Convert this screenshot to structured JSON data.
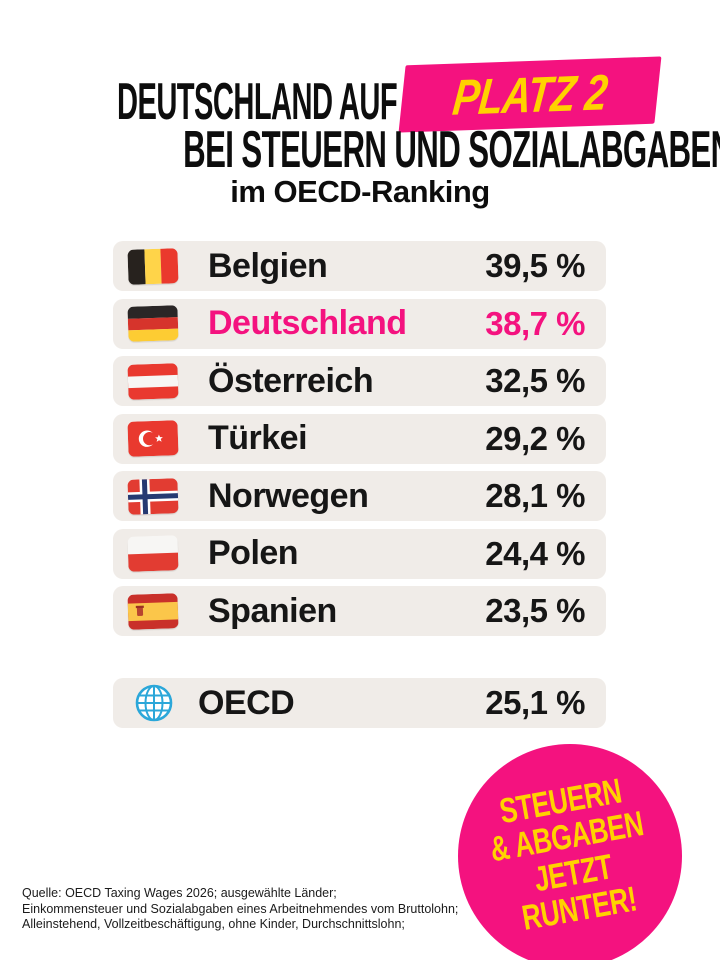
{
  "title": {
    "line1_prefix": "DEUTSCHLAND AUF",
    "badge_label": "PLATZ 2",
    "line2": "BEI STEUERN UND SOZIALABGABEN",
    "subtitle": "im OECD-Ranking"
  },
  "colors": {
    "brand_pink": "#F4127F",
    "brand_yellow": "#FFD200",
    "row_background": "#F0ECE8",
    "text_black": "#0D0D0D",
    "globe_blue": "#2BA7D9"
  },
  "ranking": {
    "rows": [
      {
        "country": "Belgien",
        "flag": "belgium-flag",
        "value": "39,5 %",
        "highlight": false
      },
      {
        "country": "Deutschland",
        "flag": "germany-flag",
        "value": "38,7 %",
        "highlight": true
      },
      {
        "country": "Österreich",
        "flag": "austria-flag",
        "value": "32,5 %",
        "highlight": false
      },
      {
        "country": "Türkei",
        "flag": "turkey-flag",
        "value": "29,2 %",
        "highlight": false
      },
      {
        "country": "Norwegen",
        "flag": "norway-flag",
        "value": "28,1 %",
        "highlight": false
      },
      {
        "country": "Polen",
        "flag": "poland-flag",
        "value": "24,4 %",
        "highlight": false
      },
      {
        "country": "Spanien",
        "flag": "spain-flag",
        "value": "23,5 %",
        "highlight": false
      }
    ],
    "summary_row": {
      "label": "OECD",
      "icon": "globe-icon",
      "value": "25,1 %"
    }
  },
  "sticker": {
    "lines": [
      "STEUERN",
      "& ABGABEN",
      "JETZT",
      "RUNTER!"
    ]
  },
  "source": {
    "lines": [
      "Quelle: OECD Taxing Wages 2026; ausgewählte Länder;",
      "Einkommensteuer und Sozialabgaben eines Arbeitnehmendes vom Bruttolohn;",
      "Alleinstehend, Vollzeitbeschäftigung, ohne Kinder, Durchschnittslohn;"
    ]
  },
  "chart_data": {
    "type": "table",
    "title": "Deutschland auf Platz 2 bei Steuern und Sozialabgaben im OECD-Ranking",
    "categories": [
      "Belgien",
      "Deutschland",
      "Österreich",
      "Türkei",
      "Norwegen",
      "Polen",
      "Spanien"
    ],
    "values": [
      39.5,
      38.7,
      32.5,
      29.2,
      28.1,
      24.4,
      23.5
    ],
    "oecd_average": 25.1,
    "unit": "%",
    "highlighted_category": "Deutschland",
    "highlighted_value": 38.7,
    "highlighted_rank": 2
  }
}
